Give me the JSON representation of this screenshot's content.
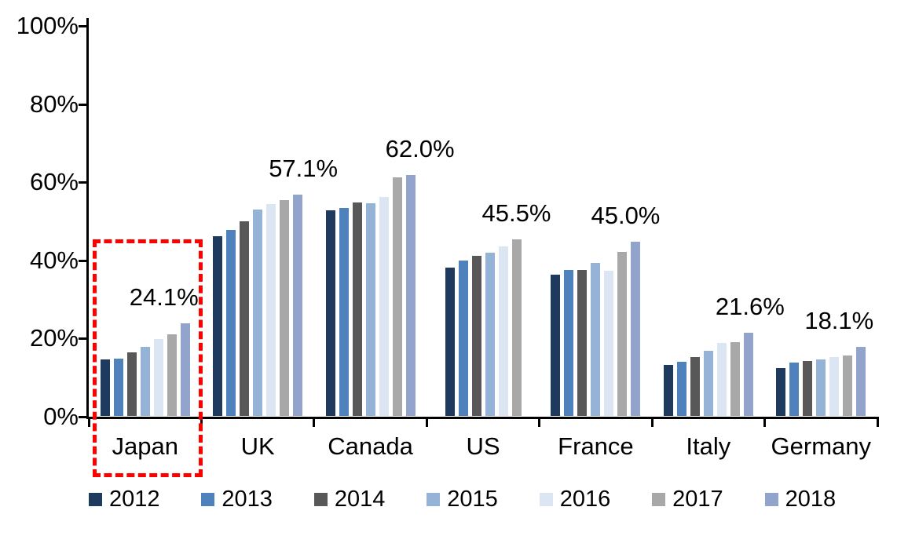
{
  "chart_data": {
    "type": "bar",
    "title": "",
    "xlabel": "",
    "ylabel": "",
    "categories": [
      "Japan",
      "UK",
      "Canada",
      "US",
      "France",
      "Italy",
      "Germany"
    ],
    "series": [
      {
        "name": "2012",
        "color": "#1F3A5F",
        "values": [
          14.9,
          46.3,
          53.0,
          38.4,
          36.6,
          13.5,
          12.7
        ]
      },
      {
        "name": "2013",
        "color": "#4F81BD",
        "values": [
          15.0,
          48.0,
          53.6,
          40.2,
          37.8,
          14.2,
          14.1
        ]
      },
      {
        "name": "2014",
        "color": "#585858",
        "values": [
          16.7,
          50.2,
          55.1,
          41.3,
          37.7,
          15.5,
          14.5
        ]
      },
      {
        "name": "2015",
        "color": "#95B3D7",
        "values": [
          18.1,
          53.3,
          54.9,
          42.2,
          39.5,
          17.1,
          14.9
        ]
      },
      {
        "name": "2016",
        "color": "#DCE6F2",
        "values": [
          20.0,
          54.7,
          56.5,
          43.7,
          37.5,
          19.1,
          15.4
        ]
      },
      {
        "name": "2017",
        "color": "#A8A8A8",
        "values": [
          21.2,
          55.7,
          61.4,
          45.5,
          42.4,
          19.2,
          15.9
        ]
      },
      {
        "name": "2018",
        "color": "#92A3CC",
        "values": [
          24.1,
          57.1,
          62.0,
          null,
          45.0,
          21.6,
          18.1
        ]
      }
    ],
    "data_labels": [
      {
        "category": "Japan",
        "text": "24.1%",
        "dx": -27
      },
      {
        "category": "UK",
        "text": "57.1%",
        "dx": 7
      },
      {
        "category": "Canada",
        "text": "62.0%",
        "dx": 12
      },
      {
        "category": "US",
        "text": "45.5%",
        "dx": 0
      },
      {
        "category": "France",
        "text": "45.0%",
        "dx": -13
      },
      {
        "category": "Italy",
        "text": "21.6%",
        "dx": 2
      },
      {
        "category": "Germany",
        "text": "18.1%",
        "dx": -28
      }
    ],
    "y_axis": {
      "min": 0,
      "max": 100,
      "tick_step": 20,
      "tick_labels": [
        "0%",
        "20%",
        "40%",
        "60%",
        "80%",
        "100%"
      ]
    },
    "grid": false,
    "legend_position": "bottom",
    "legend_labels": [
      "2012",
      "2013",
      "2014",
      "2015",
      "2016",
      "2017",
      "2018"
    ],
    "highlight": {
      "category": "Japan",
      "color": "#FF0000",
      "style": "dashed"
    }
  }
}
